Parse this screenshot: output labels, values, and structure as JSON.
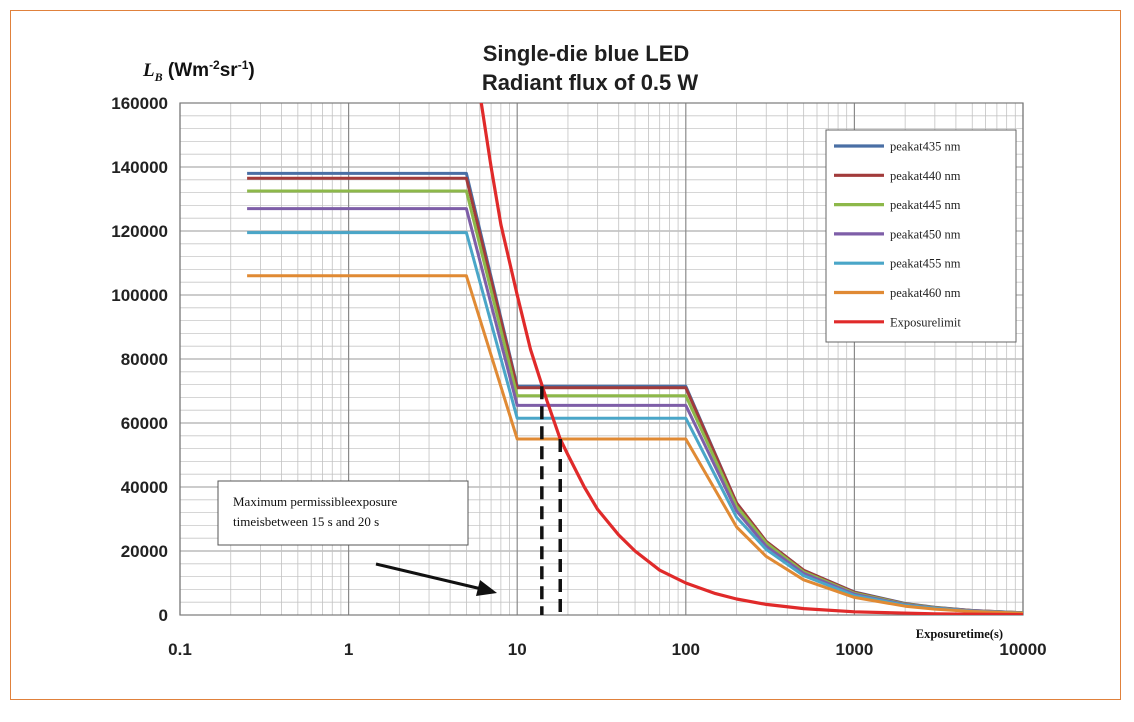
{
  "chart_data": {
    "type": "line",
    "title": "Single-die blue LED",
    "subtitle": "Radiant flux of 0.5 W",
    "ylabel": {
      "symbol": "L",
      "subscript": "B",
      "unit_prefix": "(Wm",
      "exp1": "-2",
      "mid": "sr",
      "exp2": "-1",
      "close": ")"
    },
    "xlabel": "Exposuretime(s)",
    "x_scale": "log",
    "xlim": [
      0.1,
      10000
    ],
    "ylim": [
      0,
      160000
    ],
    "x_ticks": [
      "0.1",
      "1",
      "10",
      "100",
      "1000",
      "10000"
    ],
    "y_ticks": [
      "0",
      "20000",
      "40000",
      "60000",
      "80000",
      "100000",
      "120000",
      "140000",
      "160000"
    ],
    "grid": true,
    "legend_position": "top-right",
    "series": [
      {
        "name": "peakat435 nm",
        "color": "#4a6fa5",
        "points": [
          [
            0.25,
            138000
          ],
          [
            5,
            138000
          ],
          [
            10,
            71500
          ],
          [
            100,
            71500
          ],
          [
            200,
            35000
          ],
          [
            300,
            23000
          ],
          [
            500,
            14000
          ],
          [
            1000,
            7200
          ],
          [
            2000,
            3600
          ],
          [
            3000,
            2400
          ],
          [
            5000,
            1400
          ],
          [
            10000,
            700
          ]
        ]
      },
      {
        "name": "peakat440 nm",
        "color": "#a23b3b",
        "points": [
          [
            0.25,
            136500
          ],
          [
            5,
            136500
          ],
          [
            10,
            71000
          ],
          [
            100,
            71000
          ],
          [
            200,
            35000
          ],
          [
            300,
            23000
          ],
          [
            500,
            14000
          ],
          [
            1000,
            7100
          ],
          [
            2000,
            3500
          ],
          [
            3000,
            2350
          ],
          [
            5000,
            1400
          ],
          [
            10000,
            700
          ]
        ]
      },
      {
        "name": "peakat445 nm",
        "color": "#8db84a",
        "points": [
          [
            0.25,
            132500
          ],
          [
            5,
            132500
          ],
          [
            10,
            68500
          ],
          [
            100,
            68500
          ],
          [
            200,
            34000
          ],
          [
            300,
            22500
          ],
          [
            500,
            13500
          ],
          [
            1000,
            6800
          ],
          [
            2000,
            3400
          ],
          [
            3000,
            2300
          ],
          [
            5000,
            1350
          ],
          [
            10000,
            680
          ]
        ]
      },
      {
        "name": "peakat450 nm",
        "color": "#7e5ea8",
        "points": [
          [
            0.25,
            127000
          ],
          [
            5,
            127000
          ],
          [
            10,
            65500
          ],
          [
            100,
            65500
          ],
          [
            200,
            32500
          ],
          [
            300,
            21500
          ],
          [
            500,
            13000
          ],
          [
            1000,
            6500
          ],
          [
            2000,
            3250
          ],
          [
            3000,
            2200
          ],
          [
            5000,
            1300
          ],
          [
            10000,
            650
          ]
        ]
      },
      {
        "name": "peakat455 nm",
        "color": "#4aa6c8",
        "points": [
          [
            0.25,
            119500
          ],
          [
            5,
            119500
          ],
          [
            10,
            61500
          ],
          [
            100,
            61500
          ],
          [
            200,
            30500
          ],
          [
            300,
            20500
          ],
          [
            500,
            12300
          ],
          [
            1000,
            6100
          ],
          [
            2000,
            3050
          ],
          [
            3000,
            2050
          ],
          [
            5000,
            1230
          ],
          [
            10000,
            610
          ]
        ]
      },
      {
        "name": "peakat460 nm",
        "color": "#e08a34",
        "points": [
          [
            0.25,
            106000
          ],
          [
            5,
            106000
          ],
          [
            10,
            55000
          ],
          [
            100,
            55000
          ],
          [
            200,
            27500
          ],
          [
            300,
            18300
          ],
          [
            500,
            11000
          ],
          [
            1000,
            5500
          ],
          [
            2000,
            2750
          ],
          [
            3000,
            1830
          ],
          [
            5000,
            1100
          ],
          [
            10000,
            550
          ]
        ]
      },
      {
        "name": "Exposurelimit",
        "color": "#e02a2a",
        "points": [
          [
            6,
            163000
          ],
          [
            7,
            140000
          ],
          [
            8,
            122000
          ],
          [
            10,
            100000
          ],
          [
            12,
            83000
          ],
          [
            15,
            67000
          ],
          [
            18,
            55000
          ],
          [
            20,
            50000
          ],
          [
            25,
            40000
          ],
          [
            30,
            33000
          ],
          [
            40,
            25000
          ],
          [
            50,
            20000
          ],
          [
            70,
            14000
          ],
          [
            100,
            10000
          ],
          [
            150,
            6700
          ],
          [
            200,
            5000
          ],
          [
            300,
            3300
          ],
          [
            500,
            2000
          ],
          [
            1000,
            1000
          ],
          [
            3000,
            330
          ],
          [
            10000,
            100
          ]
        ]
      }
    ],
    "annotation": {
      "lines": [
        "Maximum permissibleexposure",
        "timeisbetween 15 s and 20 s"
      ]
    },
    "markers": [
      {
        "x": 14,
        "y": 71500
      },
      {
        "x": 18,
        "y": 55000
      }
    ]
  }
}
